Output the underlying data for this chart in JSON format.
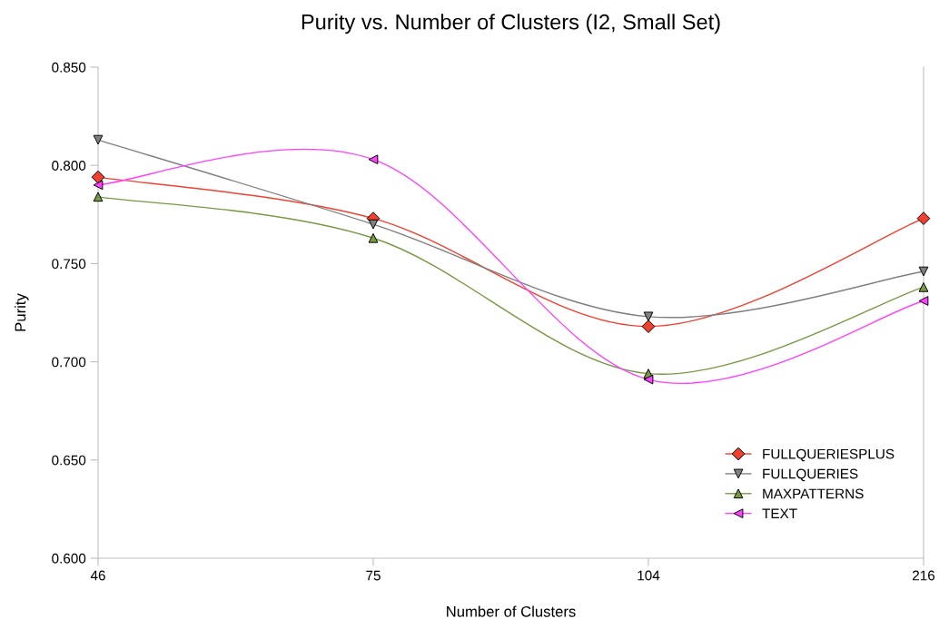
{
  "chart_data": {
    "type": "line",
    "title": "Purity vs. Number of Clusters (I2, Small Set)",
    "xlabel": "Number of Clusters",
    "ylabel": "Purity",
    "categories": [
      "46",
      "75",
      "104",
      "216"
    ],
    "ylim": [
      0.6,
      0.85
    ],
    "yticks": [
      {
        "value": 0.6,
        "label": "0.600"
      },
      {
        "value": 0.65,
        "label": "0.650"
      },
      {
        "value": 0.7,
        "label": "0.700"
      },
      {
        "value": 0.75,
        "label": "0.750"
      },
      {
        "value": 0.8,
        "label": "0.800"
      },
      {
        "value": 0.85,
        "label": "0.850"
      }
    ],
    "grid": false,
    "legend": "bottom right",
    "line_style": "solid",
    "series": [
      {
        "name": "FULLQUERIESPLUS",
        "color": "#f04030",
        "marker": "diamond",
        "values": [
          0.794,
          0.773,
          0.718,
          0.773
        ]
      },
      {
        "name": "FULLQUERIES",
        "color": "#808080",
        "marker": "triangle-down",
        "values": [
          0.813,
          0.77,
          0.723,
          0.746
        ]
      },
      {
        "name": "MAXPATTERNS",
        "color": "#779940",
        "marker": "triangle",
        "values": [
          0.784,
          0.763,
          0.694,
          0.738
        ]
      },
      {
        "name": "TEXT",
        "color": "#ff40ff",
        "marker": "triangle-left",
        "values": [
          0.79,
          0.803,
          0.691,
          0.731
        ]
      }
    ]
  }
}
